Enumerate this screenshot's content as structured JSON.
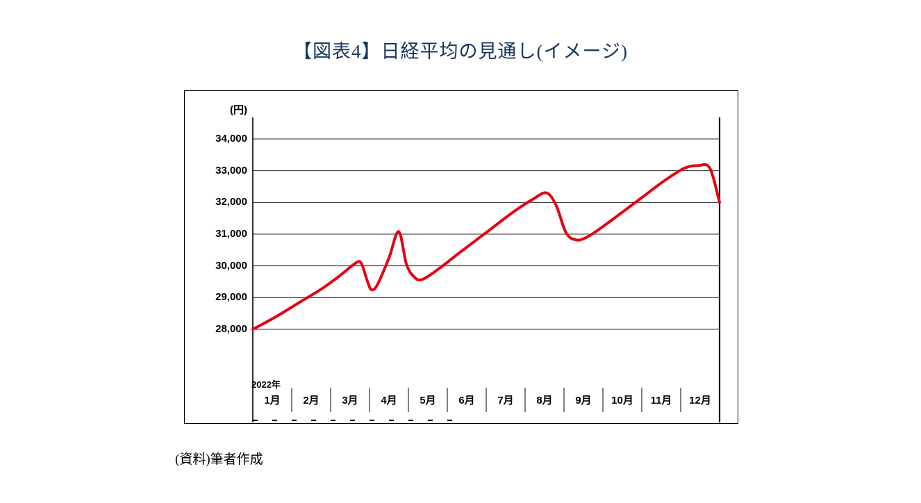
{
  "source_note": "(資料)筆者作成",
  "chart_data": {
    "type": "line",
    "title": "【図表4】日経平均の見通し(イメージ)",
    "unit_label": "(円)",
    "year_label": "2022年",
    "x_tick_labels": [
      "1月",
      "2月",
      "3月",
      "4月",
      "5月",
      "6月",
      "7月",
      "8月",
      "9月",
      "10月",
      "11月",
      "12月"
    ],
    "y_ticks": [
      28000,
      29000,
      30000,
      31000,
      32000,
      33000,
      34000
    ],
    "y_tick_labels": [
      "28,000",
      "29,000",
      "30,000",
      "31,000",
      "32,000",
      "33,000",
      "34,000"
    ],
    "ylim": [
      28000,
      34000
    ],
    "xlim_months": [
      0,
      12
    ],
    "grid": "horizontal",
    "legend": "none",
    "line_color": "#e60012",
    "axis_color": "#000000",
    "gridline_color": "#2e2e2e",
    "series": [
      {
        "points": [
          [
            0.0,
            28000
          ],
          [
            0.6,
            28400
          ],
          [
            1.2,
            28850
          ],
          [
            1.8,
            29300
          ],
          [
            2.3,
            29750
          ],
          [
            2.6,
            30050
          ],
          [
            2.78,
            30100
          ],
          [
            2.95,
            29500
          ],
          [
            3.05,
            29250
          ],
          [
            3.2,
            29400
          ],
          [
            3.5,
            30250
          ],
          [
            3.75,
            31080
          ],
          [
            3.95,
            30050
          ],
          [
            4.15,
            29650
          ],
          [
            4.35,
            29570
          ],
          [
            4.75,
            29880
          ],
          [
            5.3,
            30400
          ],
          [
            6.0,
            31050
          ],
          [
            6.7,
            31700
          ],
          [
            7.2,
            32100
          ],
          [
            7.55,
            32300
          ],
          [
            7.8,
            31900
          ],
          [
            8.05,
            31050
          ],
          [
            8.3,
            30820
          ],
          [
            8.55,
            30880
          ],
          [
            8.9,
            31150
          ],
          [
            9.4,
            31600
          ],
          [
            10.0,
            32150
          ],
          [
            10.6,
            32700
          ],
          [
            11.1,
            33080
          ],
          [
            11.45,
            33160
          ],
          [
            11.75,
            33080
          ],
          [
            12.0,
            32000
          ]
        ]
      }
    ]
  }
}
